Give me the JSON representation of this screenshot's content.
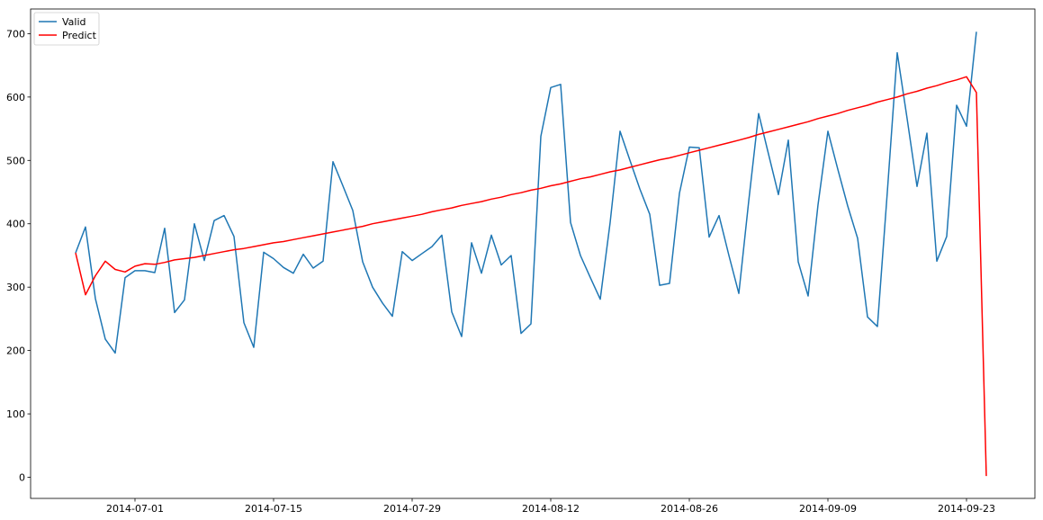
{
  "chart_data": {
    "type": "line",
    "title": "",
    "xlabel": "",
    "ylabel": "",
    "x_start": "2014-06-25",
    "x_tick_labels": [
      "2014-07-01",
      "2014-07-15",
      "2014-07-29",
      "2014-08-12",
      "2014-08-26",
      "2014-09-09",
      "2014-09-23"
    ],
    "ylim": [
      -32,
      734
    ],
    "y_ticks": [
      0,
      100,
      200,
      300,
      400,
      500,
      600,
      700
    ],
    "legend_position": "top-left",
    "grid": false,
    "series": [
      {
        "name": "Valid",
        "color": "#1f77b4",
        "values": [
          354,
          395,
          282,
          218,
          196,
          315,
          326,
          326,
          323,
          393,
          260,
          280,
          400,
          342,
          405,
          413,
          380,
          244,
          205,
          355,
          345,
          331,
          322,
          352,
          330,
          341,
          498,
          460,
          421,
          340,
          300,
          275,
          254,
          356,
          342,
          353,
          364,
          382,
          261,
          222,
          370,
          322,
          382,
          335,
          350,
          227,
          242,
          538,
          615,
          620,
          402,
          350,
          315,
          281,
          402,
          546,
          500,
          455,
          415,
          303,
          306,
          448,
          521,
          520,
          379,
          413,
          350,
          290,
          436,
          574,
          510,
          446,
          532,
          340,
          286,
          430,
          546,
          486,
          428,
          377,
          253,
          238,
          450,
          670,
          566,
          459,
          543,
          341,
          380,
          587,
          554,
          703
        ]
      },
      {
        "name": "Predict",
        "color": "#ff0000",
        "values": [
          354,
          288,
          318,
          341,
          328,
          324,
          333,
          337,
          336,
          339,
          343,
          345,
          347,
          350,
          353,
          356,
          359,
          361,
          364,
          367,
          370,
          372,
          375,
          378,
          381,
          384,
          387,
          390,
          393,
          396,
          400,
          403,
          406,
          409,
          412,
          415,
          419,
          422,
          425,
          429,
          432,
          435,
          439,
          442,
          446,
          449,
          453,
          456,
          460,
          463,
          467,
          471,
          474,
          478,
          482,
          485,
          489,
          493,
          497,
          501,
          504,
          508,
          512,
          516,
          520,
          524,
          528,
          532,
          536,
          541,
          545,
          549,
          553,
          557,
          561,
          566,
          570,
          574,
          579,
          583,
          587,
          592,
          596,
          600,
          605,
          609,
          614,
          618,
          623,
          627,
          632,
          607,
          2
        ]
      }
    ]
  }
}
